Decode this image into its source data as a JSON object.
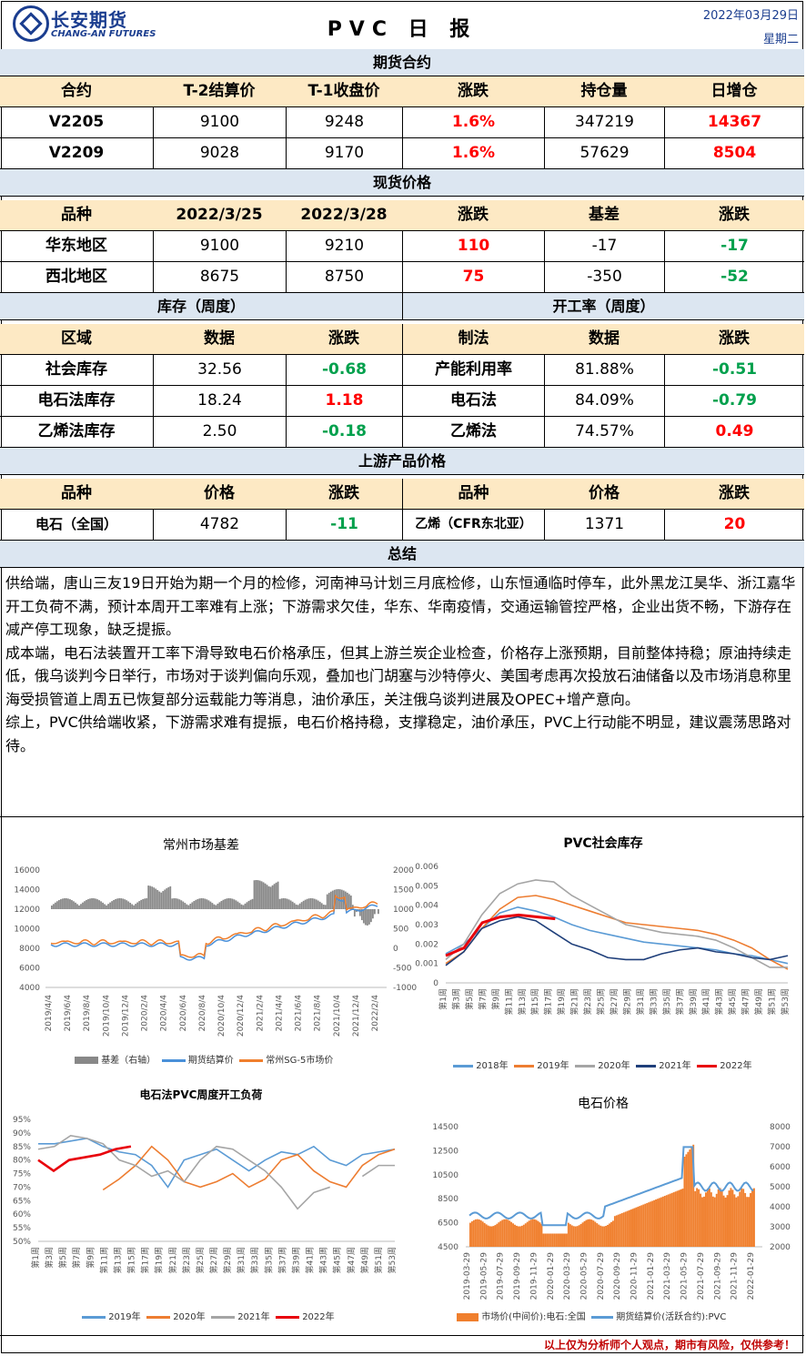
{
  "header": {
    "brand_cn": "长安期货",
    "brand_en": "CHANG-AN FUTURES",
    "title": "PVC 日 报",
    "date": "2022年03月29日",
    "weekday": "星期二"
  },
  "futures": {
    "band": "期货合约",
    "headers": [
      "合约",
      "T-2结算价",
      "T-1收盘价",
      "涨跌",
      "持仓量",
      "日增仓"
    ],
    "rows": [
      [
        "V2205",
        "9100",
        "9248",
        "1.6%",
        "347219",
        "14367"
      ],
      [
        "V2209",
        "9028",
        "9170",
        "1.6%",
        "57629",
        "8504"
      ]
    ]
  },
  "spot": {
    "band": "现货价格",
    "headers": [
      "品种",
      "2022/3/25",
      "2022/3/28",
      "涨跌",
      "基差",
      "涨跌"
    ],
    "rows": [
      [
        "华东地区",
        "9100",
        "9210",
        "110",
        "-17",
        "-17"
      ],
      [
        "西北地区",
        "8675",
        "8750",
        "75",
        "-350",
        "-52"
      ]
    ]
  },
  "inventory": {
    "band": "库存（周度）",
    "headers": [
      "区域",
      "数据",
      "涨跌"
    ],
    "rows": [
      [
        "社会库存",
        "32.56",
        "-0.68"
      ],
      [
        "电石法库存",
        "18.24",
        "1.18"
      ],
      [
        "乙烯法库存",
        "2.50",
        "-0.18"
      ]
    ]
  },
  "operating": {
    "band": "开工率（周度）",
    "headers": [
      "制法",
      "数据",
      "涨跌"
    ],
    "rows": [
      [
        "产能利用率",
        "81.88%",
        "-0.51"
      ],
      [
        "电石法",
        "84.09%",
        "-0.79"
      ],
      [
        "乙烯法",
        "74.57%",
        "0.49"
      ]
    ]
  },
  "upstream": {
    "band": "上游产品价格",
    "headers": [
      "品种",
      "价格",
      "涨跌",
      "品种",
      "价格",
      "涨跌"
    ],
    "row": [
      "电石（全国）",
      "4782",
      "-11",
      "乙烯（CFR东北亚）",
      "1371",
      "20"
    ]
  },
  "summary": {
    "band": "总结",
    "paragraphs": [
      "供给端，唐山三友19日开始为期一个月的检修，河南神马计划三月底检修，山东恒通临时停车，此外黑龙江昊华、浙江嘉华开工负荷不满，预计本周开工率难有上涨；下游需求欠佳，华东、华南疫情，交通运输管控严格，企业出货不畅，下游存在减产停工现象，缺乏提振。",
      "成本端，电石法装置开工率下滑导致电石价格承压，但其上游兰炭企业检查，价格存上涨预期，目前整体持稳；原油持续走低，俄乌谈判今日举行，市场对于谈判偏向乐观，叠加也门胡塞与沙特停火、美国考虑再次投放石油储备以及市场消息称里海受损管道上周五已恢复部分运载能力等消息，油价承压，关注俄乌谈判进展及OPEC+增产意向。",
      "综上，PVC供给端收紧，下游需求难有提振，电石价格持稳，支撑稳定，油价承压，PVC上行动能不明显，建议震荡思路对待。"
    ]
  },
  "charts": {
    "basis": {
      "title": "常州市场基差",
      "yleft": [
        "16000",
        "14000",
        "12000",
        "10000",
        "8000",
        "6000",
        "4000"
      ],
      "yright": [
        "2000",
        "1500",
        "1000",
        "500",
        "0",
        "-500",
        "-1000"
      ],
      "x": [
        "2019/4/4",
        "2019/6/4",
        "2019/8/4",
        "2019/10/4",
        "2019/12/4",
        "2020/2/4",
        "2020/4/4",
        "2020/6/4",
        "2020/8/4",
        "2020/10/4",
        "2020/12/4",
        "2021/2/4",
        "2021/4/4",
        "2021/6/4",
        "2021/8/4",
        "2021/10/4",
        "2021/12/4",
        "2022/2/4"
      ],
      "legend": [
        "基差（右轴）",
        "期货结算价",
        "常州SG-5市场价"
      ],
      "colors": [
        "#888888",
        "#4a90d9",
        "#f07f2d"
      ]
    },
    "inventory": {
      "title": "PVC社会库存",
      "y": [
        "0.006",
        "0.005",
        "0.004",
        "0.003",
        "0.002",
        "0.001",
        "0"
      ],
      "legend": [
        "2018年",
        "2019年",
        "2020年",
        "2021年",
        "2022年"
      ],
      "colors": [
        "#5b9bd5",
        "#ed7d31",
        "#a5a5a5",
        "#1f3f7a",
        "#e8000b"
      ]
    },
    "operating": {
      "title": "电石法PVC周度开工负荷",
      "y": [
        "95%",
        "90%",
        "85%",
        "80%",
        "75%",
        "70%",
        "65%",
        "60%",
        "55%",
        "50%"
      ],
      "legend": [
        "2019年",
        "2020年",
        "2021年",
        "2022年"
      ],
      "colors": [
        "#5b9bd5",
        "#ed7d31",
        "#a5a5a5",
        "#e8000b"
      ]
    },
    "carbide": {
      "title": "电石价格",
      "yleft": [
        "14500",
        "12500",
        "10500",
        "8500",
        "6500",
        "4500"
      ],
      "yright": [
        "8000",
        "7000",
        "6000",
        "5000",
        "4000",
        "3000",
        "2000"
      ],
      "x": [
        "2019-03-29",
        "2019-05-29",
        "2019-07-29",
        "2019-09-29",
        "2019-11-29",
        "2020-01-29",
        "2020-03-29",
        "2020-05-29",
        "2020-07-29",
        "2020-09-29",
        "2020-11-29",
        "2021-01-29",
        "2021-03-29",
        "2021-05-29",
        "2021-07-29",
        "2021-09-29",
        "2021-11-29",
        "2022-01-29"
      ],
      "legend": [
        "市场价(中间价):电石:全国",
        "期货结算价(活跃合约):PVC"
      ],
      "colors": [
        "#f07f2d",
        "#5b9bd5"
      ]
    }
  },
  "footer": "以上仅为分析师个人观点，期市有风险，仅供参考！"
}
